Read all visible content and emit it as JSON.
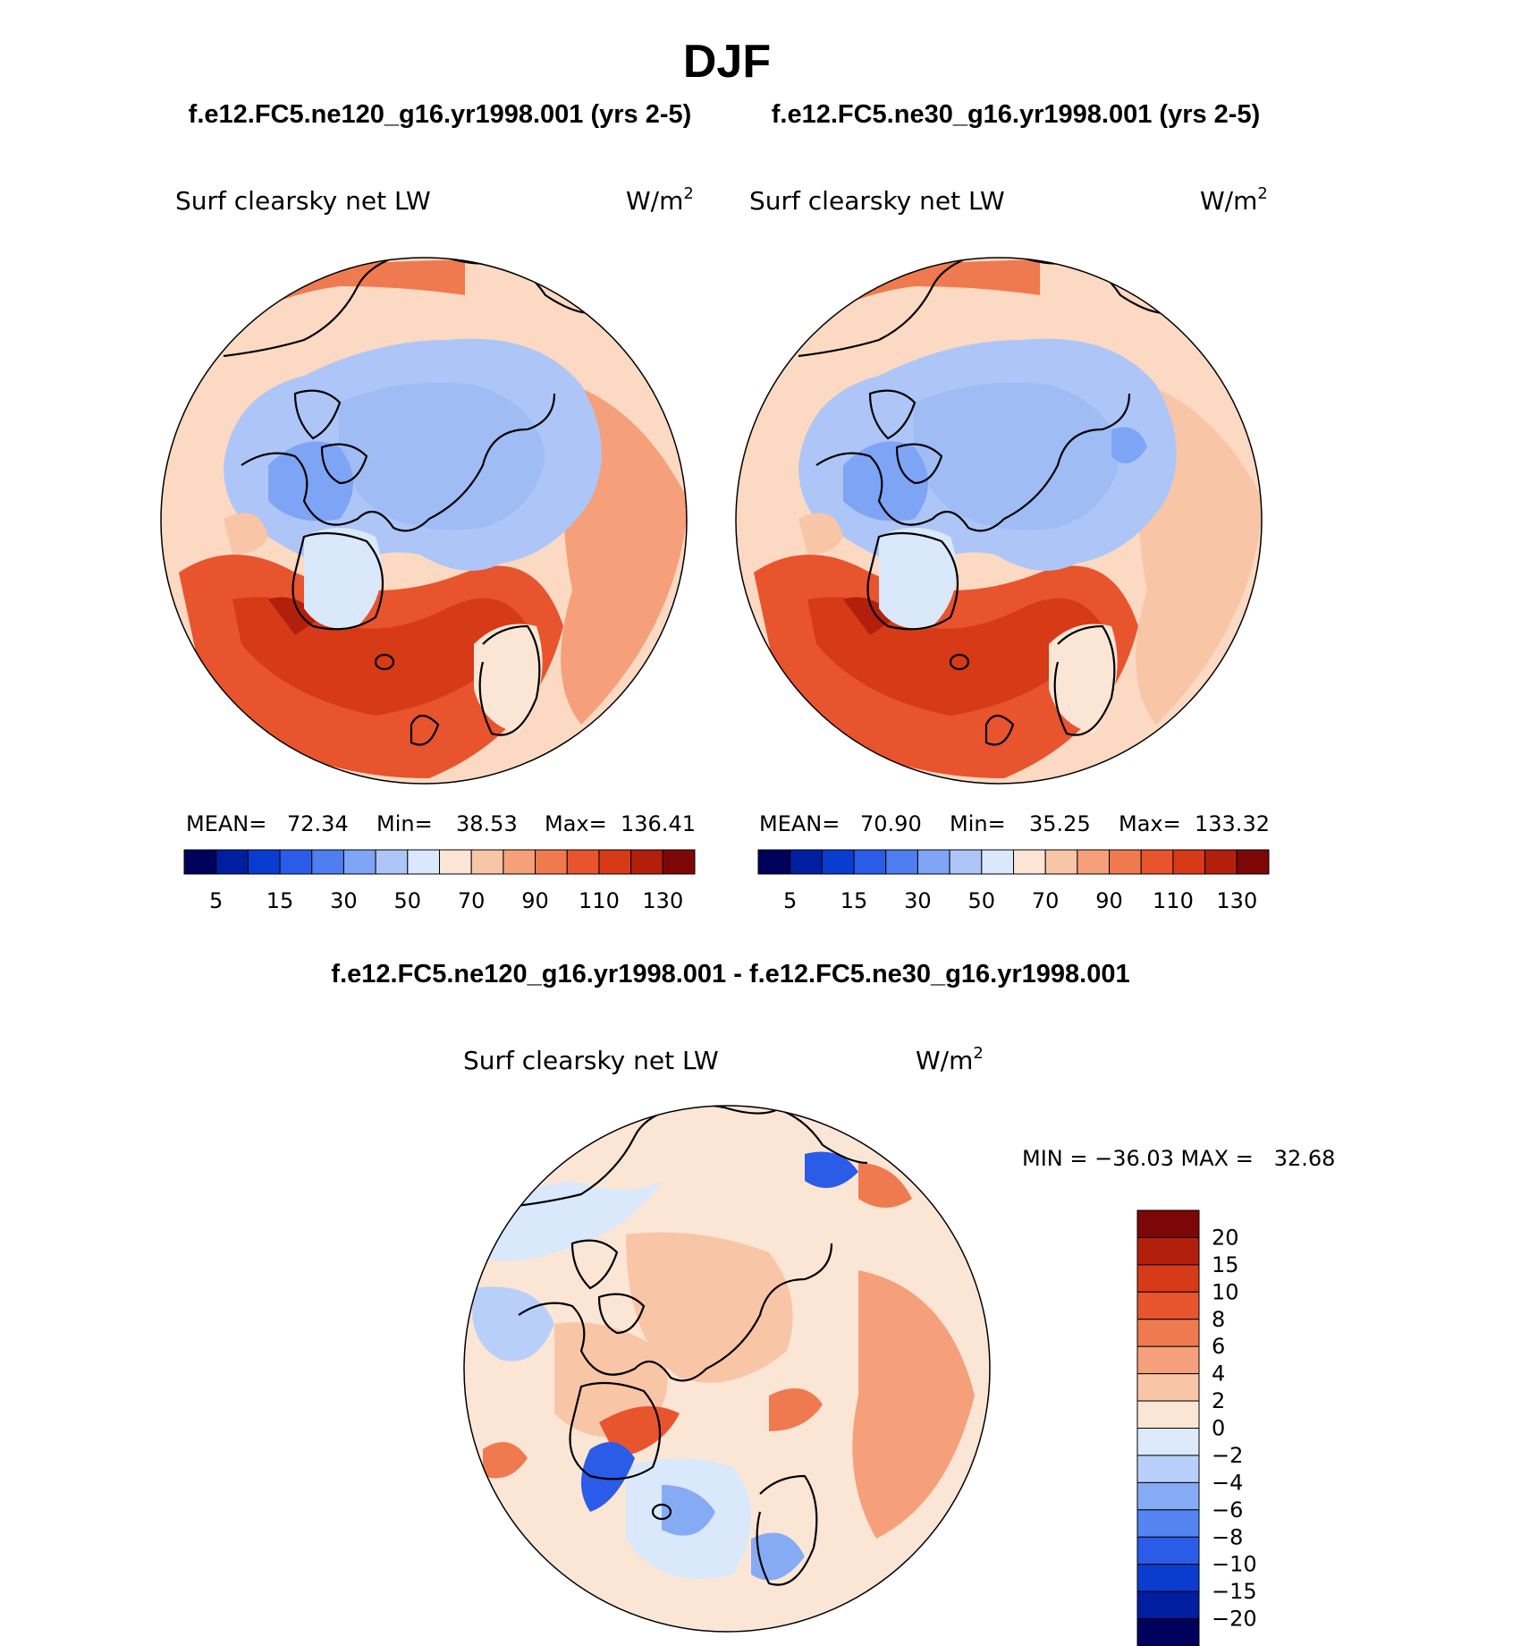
{
  "title": "DJF",
  "case_top_left": "f.e12.FC5.ne120_g16.yr1998.001 (yrs 2-5)",
  "case_top_right": "f.e12.FC5.ne30_g16.yr1998.001 (yrs 2-5)",
  "diff_title": "f.e12.FC5.ne120_g16.yr1998.001 - f.e12.FC5.ne30_g16.yr1998.001",
  "colors": {
    "land_outline": "#000000",
    "abs_palette": [
      "#00005c",
      "#001ea0",
      "#0a3ccf",
      "#2a5ce8",
      "#4e7ef0",
      "#7ea4f5",
      "#adc6f7",
      "#dae8fb",
      "#fbe6d6",
      "#f9c5a7",
      "#f5a07a",
      "#ef7a50",
      "#e8542e",
      "#d63a17",
      "#b2200c",
      "#7d0707"
    ],
    "diff_palette": [
      "#00005c",
      "#001ea0",
      "#0a3ccf",
      "#2a5ce8",
      "#5384ef",
      "#86abf5",
      "#b8d0f9",
      "#dceafb",
      "#fbe6d6",
      "#f9c5a7",
      "#f5a07a",
      "#ef7a50",
      "#e8542e",
      "#d63a17",
      "#b2200c",
      "#7d0707"
    ]
  },
  "panels": [
    {
      "variable": "Surf clearsky net LW",
      "units_base": "W/m",
      "units_exp": "2",
      "stats": {
        "mean_label": "MEAN=",
        "mean": "72.34",
        "min_label": "Min=",
        "min": "38.53",
        "max_label": "Max=",
        "max": "136.41"
      },
      "colorbar_ticks": [
        "5",
        "15",
        "30",
        "50",
        "70",
        "90",
        "110",
        "130"
      ]
    },
    {
      "variable": "Surf clearsky net LW",
      "units_base": "W/m",
      "units_exp": "2",
      "stats": {
        "mean_label": "MEAN=",
        "mean": "70.90",
        "min_label": "Min=",
        "min": "35.25",
        "max_label": "Max=",
        "max": "133.32"
      },
      "colorbar_ticks": [
        "5",
        "15",
        "30",
        "50",
        "70",
        "90",
        "110",
        "130"
      ]
    }
  ],
  "diff_panel": {
    "variable": "Surf clearsky net LW",
    "units_base": "W/m",
    "units_exp": "2",
    "minmax_text": "MIN = −36.03 MAX =   32.68",
    "colorbar_ticks": [
      "20",
      "15",
      "10",
      "8",
      "6",
      "4",
      "2",
      "0",
      "−2",
      "−4",
      "−6",
      "−8",
      "−10",
      "−15",
      "−20"
    ]
  },
  "chart_data": [
    {
      "type": "heatmap",
      "projection": "north polar stereographic",
      "title": "f.e12.FC5.ne120_g16.yr1998.001 (yrs 2-5)",
      "variable": "Surf clearsky net LW",
      "units": "W/m2",
      "mean": 72.34,
      "min": 38.53,
      "max": 136.41,
      "levels": [
        5,
        10,
        15,
        20,
        30,
        40,
        50,
        60,
        70,
        80,
        90,
        100,
        110,
        120,
        130
      ]
    },
    {
      "type": "heatmap",
      "projection": "north polar stereographic",
      "title": "f.e12.FC5.ne30_g16.yr1998.001 (yrs 2-5)",
      "variable": "Surf clearsky net LW",
      "units": "W/m2",
      "mean": 70.9,
      "min": 35.25,
      "max": 133.32,
      "levels": [
        5,
        10,
        15,
        20,
        30,
        40,
        50,
        60,
        70,
        80,
        90,
        100,
        110,
        120,
        130
      ]
    },
    {
      "type": "heatmap",
      "projection": "north polar stereographic",
      "title": "f.e12.FC5.ne120_g16.yr1998.001 - f.e12.FC5.ne30_g16.yr1998.001",
      "variable": "Surf clearsky net LW",
      "units": "W/m2",
      "min": -36.03,
      "max": 32.68,
      "levels": [
        -20,
        -15,
        -10,
        -8,
        -6,
        -4,
        -2,
        0,
        2,
        4,
        6,
        8,
        10,
        15,
        20
      ]
    }
  ]
}
